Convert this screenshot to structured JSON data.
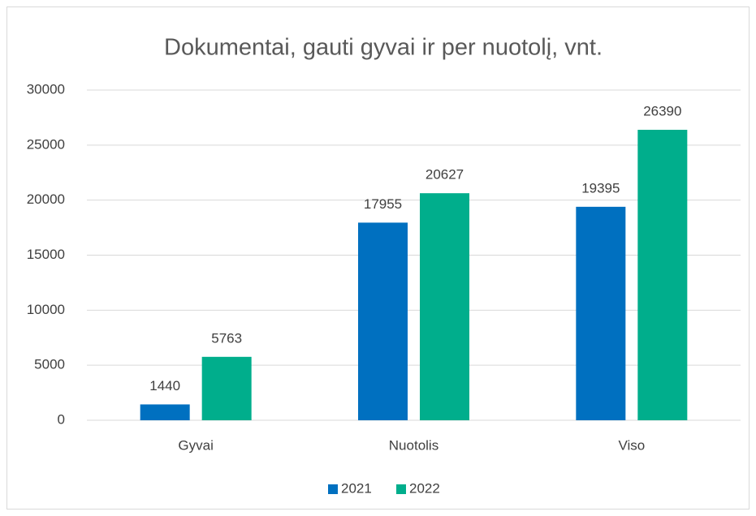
{
  "chart_data": {
    "type": "bar",
    "title": "Dokumentai, gauti gyvai ir per nuotolį, vnt.",
    "categories": [
      "Gyvai",
      "Nuotolis",
      "Viso"
    ],
    "series": [
      {
        "name": "2021",
        "color": "#0070c0",
        "values": [
          1440,
          17955,
          19395
        ]
      },
      {
        "name": "2022",
        "color": "#00ae8c",
        "values": [
          5763,
          20627,
          26390
        ]
      }
    ],
    "ylim": [
      0,
      30000
    ],
    "yticks": [
      0,
      5000,
      10000,
      15000,
      20000,
      25000,
      30000
    ],
    "grid": true,
    "legend": "bottom"
  }
}
